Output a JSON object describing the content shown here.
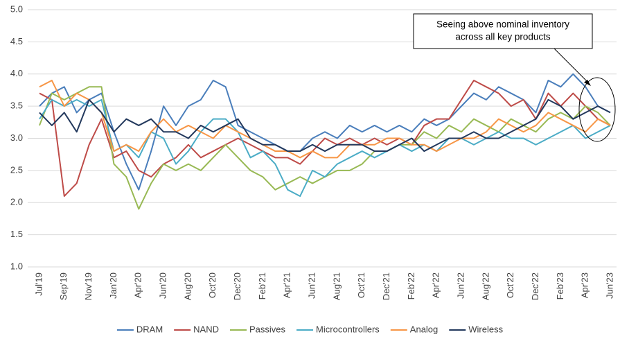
{
  "chart_data": {
    "type": "line",
    "annotation": [
      "Seeing above nominal inventory",
      "across all key products"
    ],
    "categories": [
      "Jul'19",
      null,
      "Sep'19",
      null,
      "Nov'19",
      null,
      "Jan'20",
      null,
      "Apr'20",
      null,
      "Jun'20",
      null,
      "Aug'20",
      null,
      "Oct'20",
      null,
      "Dec'20",
      null,
      "Feb'21",
      null,
      "Apr'21",
      null,
      "Jun'21",
      null,
      "Aug'21",
      null,
      "Oct'21",
      null,
      "Dec'21",
      null,
      "Feb'22",
      null,
      "Apr'22",
      null,
      "Jun'22",
      null,
      "Aug'22",
      null,
      "Oct'22",
      null,
      "Dec'22",
      null,
      "Feb'23",
      null,
      "Apr'23",
      null,
      "Jun'23"
    ],
    "series": [
      {
        "name": "DRAM",
        "color": "#4a7ebb",
        "values": [
          3.5,
          3.7,
          3.8,
          3.4,
          3.6,
          3.7,
          3.1,
          2.6,
          2.2,
          2.8,
          3.5,
          3.2,
          3.5,
          3.6,
          3.9,
          3.8,
          3.2,
          3.1,
          3.0,
          2.9,
          2.8,
          2.8,
          3.0,
          3.1,
          3.0,
          3.2,
          3.1,
          3.2,
          3.1,
          3.2,
          3.1,
          3.3,
          3.2,
          3.3,
          3.5,
          3.7,
          3.6,
          3.8,
          3.7,
          3.6,
          3.4,
          3.9,
          3.8,
          4.0,
          3.8,
          3.5,
          3.4
        ]
      },
      {
        "name": "NAND",
        "color": "#be4b48",
        "values": [
          3.7,
          3.6,
          2.1,
          2.3,
          2.9,
          3.3,
          2.7,
          2.8,
          2.5,
          2.4,
          2.6,
          2.7,
          2.9,
          2.7,
          2.8,
          2.9,
          3.0,
          2.9,
          2.8,
          2.7,
          2.7,
          2.6,
          2.8,
          3.0,
          2.9,
          3.0,
          2.9,
          3.0,
          2.9,
          3.0,
          2.9,
          3.2,
          3.3,
          3.3,
          3.6,
          3.9,
          3.8,
          3.7,
          3.5,
          3.6,
          3.3,
          3.7,
          3.5,
          3.7,
          3.5,
          3.3,
          3.2
        ]
      },
      {
        "name": "Passives",
        "color": "#98b954",
        "values": [
          3.2,
          3.7,
          3.6,
          3.7,
          3.8,
          3.8,
          2.6,
          2.4,
          1.9,
          2.3,
          2.6,
          2.5,
          2.6,
          2.5,
          2.7,
          2.9,
          2.7,
          2.5,
          2.4,
          2.2,
          2.3,
          2.4,
          2.3,
          2.4,
          2.5,
          2.5,
          2.6,
          2.8,
          2.8,
          2.9,
          2.9,
          3.1,
          3.0,
          3.2,
          3.1,
          3.3,
          3.2,
          3.1,
          3.3,
          3.2,
          3.1,
          3.3,
          3.4,
          3.3,
          3.5,
          3.4,
          3.2
        ]
      },
      {
        "name": "Microcontrollers",
        "color": "#4bacc6",
        "values": [
          3.3,
          3.6,
          3.5,
          3.6,
          3.5,
          3.6,
          2.8,
          2.9,
          2.7,
          3.1,
          3.0,
          2.6,
          2.8,
          3.1,
          3.3,
          3.3,
          3.1,
          2.7,
          2.8,
          2.6,
          2.2,
          2.1,
          2.5,
          2.4,
          2.6,
          2.7,
          2.8,
          2.7,
          2.8,
          2.9,
          2.8,
          2.9,
          2.8,
          3.0,
          3.0,
          2.9,
          3.0,
          3.1,
          3.0,
          3.0,
          2.9,
          3.0,
          3.1,
          3.2,
          3.0,
          3.1,
          3.2
        ]
      },
      {
        "name": "Analog",
        "color": "#f79646",
        "values": [
          3.8,
          3.9,
          3.5,
          3.7,
          3.6,
          3.4,
          2.8,
          2.9,
          2.8,
          3.1,
          3.3,
          3.1,
          3.2,
          3.1,
          3.0,
          3.2,
          3.1,
          3.0,
          2.9,
          2.8,
          2.8,
          2.7,
          2.8,
          2.7,
          2.7,
          2.9,
          2.9,
          2.9,
          3.0,
          3.0,
          2.9,
          2.9,
          2.8,
          2.9,
          3.0,
          3.0,
          3.1,
          3.3,
          3.2,
          3.1,
          3.2,
          3.4,
          3.3,
          3.2,
          3.1,
          3.3,
          3.2
        ]
      },
      {
        "name": "Wireless",
        "color": "#23395d",
        "values": [
          3.4,
          3.2,
          3.4,
          3.1,
          3.6,
          3.4,
          3.1,
          3.3,
          3.2,
          3.3,
          3.1,
          3.1,
          3.0,
          3.2,
          3.1,
          3.2,
          3.3,
          3.0,
          2.9,
          2.9,
          2.8,
          2.8,
          2.9,
          2.8,
          2.9,
          2.9,
          2.9,
          2.8,
          2.8,
          2.9,
          3.0,
          2.8,
          2.9,
          3.0,
          3.0,
          3.1,
          3.0,
          3.0,
          3.1,
          3.2,
          3.3,
          3.6,
          3.5,
          3.3,
          3.4,
          3.5,
          3.4
        ]
      }
    ],
    "ylim": [
      1.0,
      5.0
    ],
    "yticks": [
      {
        "value": 1.0,
        "label": "1.0"
      },
      1.5,
      {
        "value": 2.0,
        "label": "2.0"
      },
      2.5,
      {
        "value": 3.0,
        "label": "3.0"
      },
      3.5,
      {
        "value": 4.0,
        "label": "4.0"
      },
      4.5,
      {
        "value": 5.0,
        "label": "5.0"
      }
    ],
    "grid": true
  }
}
